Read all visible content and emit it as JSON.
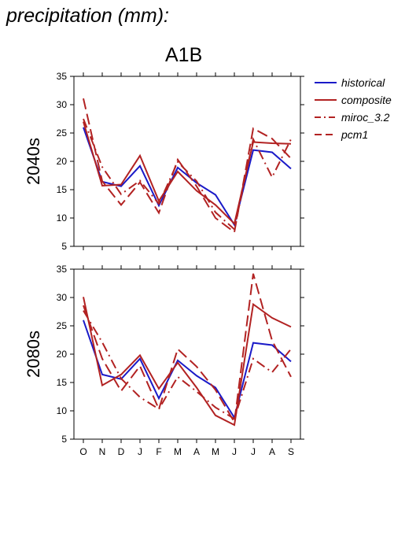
{
  "title": "precipitation (mm):",
  "scenario": "A1B",
  "legend": [
    {
      "name": "historical",
      "color": "#1a1ac8",
      "dash": "solid"
    },
    {
      "name": "composite",
      "color": "#b22222",
      "dash": "solid"
    },
    {
      "name": "miroc_3.2",
      "color": "#b22222",
      "dash": "dashdot"
    },
    {
      "name": "pcm1",
      "color": "#b22222",
      "dash": "dashed"
    }
  ],
  "chart_data": [
    {
      "type": "line",
      "panel_label": "2040s",
      "categories": [
        "O",
        "N",
        "D",
        "J",
        "F",
        "M",
        "A",
        "M",
        "J",
        "J",
        "A",
        "S"
      ],
      "ylim": [
        5,
        35
      ],
      "yticks": [
        5,
        10,
        15,
        20,
        25,
        30,
        35
      ],
      "series": [
        {
          "name": "historical",
          "values": [
            26,
            16.4,
            15.6,
            19.2,
            12.2,
            18.9,
            16.2,
            14.1,
            8.8,
            22,
            21.6,
            18.7
          ]
        },
        {
          "name": "composite",
          "values": [
            27,
            15.7,
            15.9,
            21,
            13,
            18.2,
            14.8,
            12.3,
            9,
            23.4,
            23.2,
            23.1
          ]
        },
        {
          "name": "miroc_3.2",
          "values": [
            27.5,
            19,
            14.2,
            16.6,
            12.5,
            19.9,
            16.5,
            11,
            8,
            23.9,
            17.2,
            23.9
          ]
        },
        {
          "name": "pcm1",
          "values": [
            31.1,
            16.5,
            12.3,
            16.3,
            10.9,
            20.3,
            15.6,
            10,
            7.5,
            25.8,
            24,
            20.5
          ]
        }
      ]
    },
    {
      "type": "line",
      "panel_label": "2080s",
      "categories": [
        "O",
        "N",
        "D",
        "J",
        "F",
        "M",
        "A",
        "M",
        "J",
        "J",
        "A",
        "S"
      ],
      "ylim": [
        5,
        35
      ],
      "yticks": [
        5,
        10,
        15,
        20,
        25,
        30,
        35
      ],
      "series": [
        {
          "name": "historical",
          "values": [
            26,
            16.4,
            15.6,
            19.2,
            12.2,
            18.9,
            16.2,
            14.1,
            8.8,
            22,
            21.6,
            18.7
          ]
        },
        {
          "name": "composite",
          "values": [
            30.1,
            14.5,
            16.4,
            19.8,
            13.9,
            18.5,
            14.1,
            9.2,
            7.5,
            28.8,
            26.4,
            24.8
          ]
        },
        {
          "name": "miroc_3.2",
          "values": [
            27.7,
            22.1,
            15.7,
            12.4,
            10.3,
            16,
            13.4,
            10.6,
            8.6,
            19.2,
            16.8,
            20.9
          ]
        },
        {
          "name": "pcm1",
          "values": [
            28.6,
            19.2,
            13.5,
            17.9,
            10.3,
            20.9,
            17.8,
            13.7,
            8,
            34.2,
            22.4,
            16
          ]
        }
      ]
    }
  ]
}
